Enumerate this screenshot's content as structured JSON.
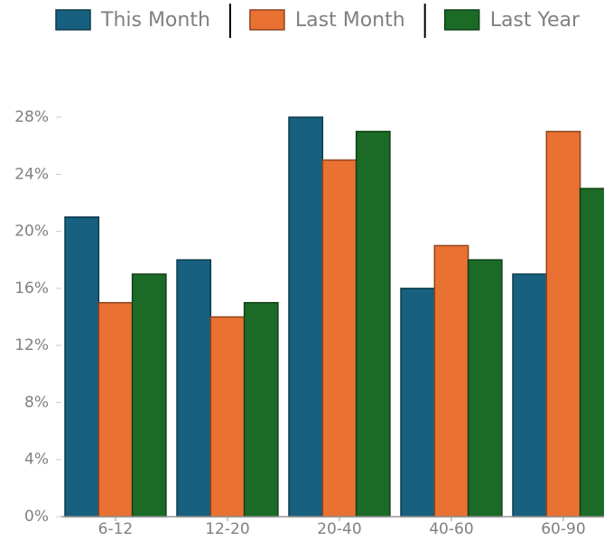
{
  "chart_data": {
    "type": "bar",
    "categories": [
      "6-12",
      "12-20",
      "20-40",
      "40-60",
      "60-90"
    ],
    "series": [
      {
        "name": "This Month",
        "color": "#17607f",
        "values": [
          21,
          18,
          28,
          16,
          17
        ]
      },
      {
        "name": "Last Month",
        "color": "#e97132",
        "values": [
          15,
          14,
          25,
          19,
          27
        ]
      },
      {
        "name": "Last Year",
        "color": "#1b6b27",
        "values": [
          17,
          15,
          27,
          18,
          23
        ]
      }
    ],
    "ylim": [
      0,
      28
    ],
    "yticks": [
      {
        "value": 0,
        "label": "0%"
      },
      {
        "value": 4,
        "label": "4%"
      },
      {
        "value": 8,
        "label": "8%"
      },
      {
        "value": 12,
        "label": "12%"
      },
      {
        "value": 16,
        "label": "16%"
      },
      {
        "value": 20,
        "label": "20%"
      },
      {
        "value": 24,
        "label": "24%"
      },
      {
        "value": 28,
        "label": "28%"
      }
    ],
    "legend": "top"
  }
}
